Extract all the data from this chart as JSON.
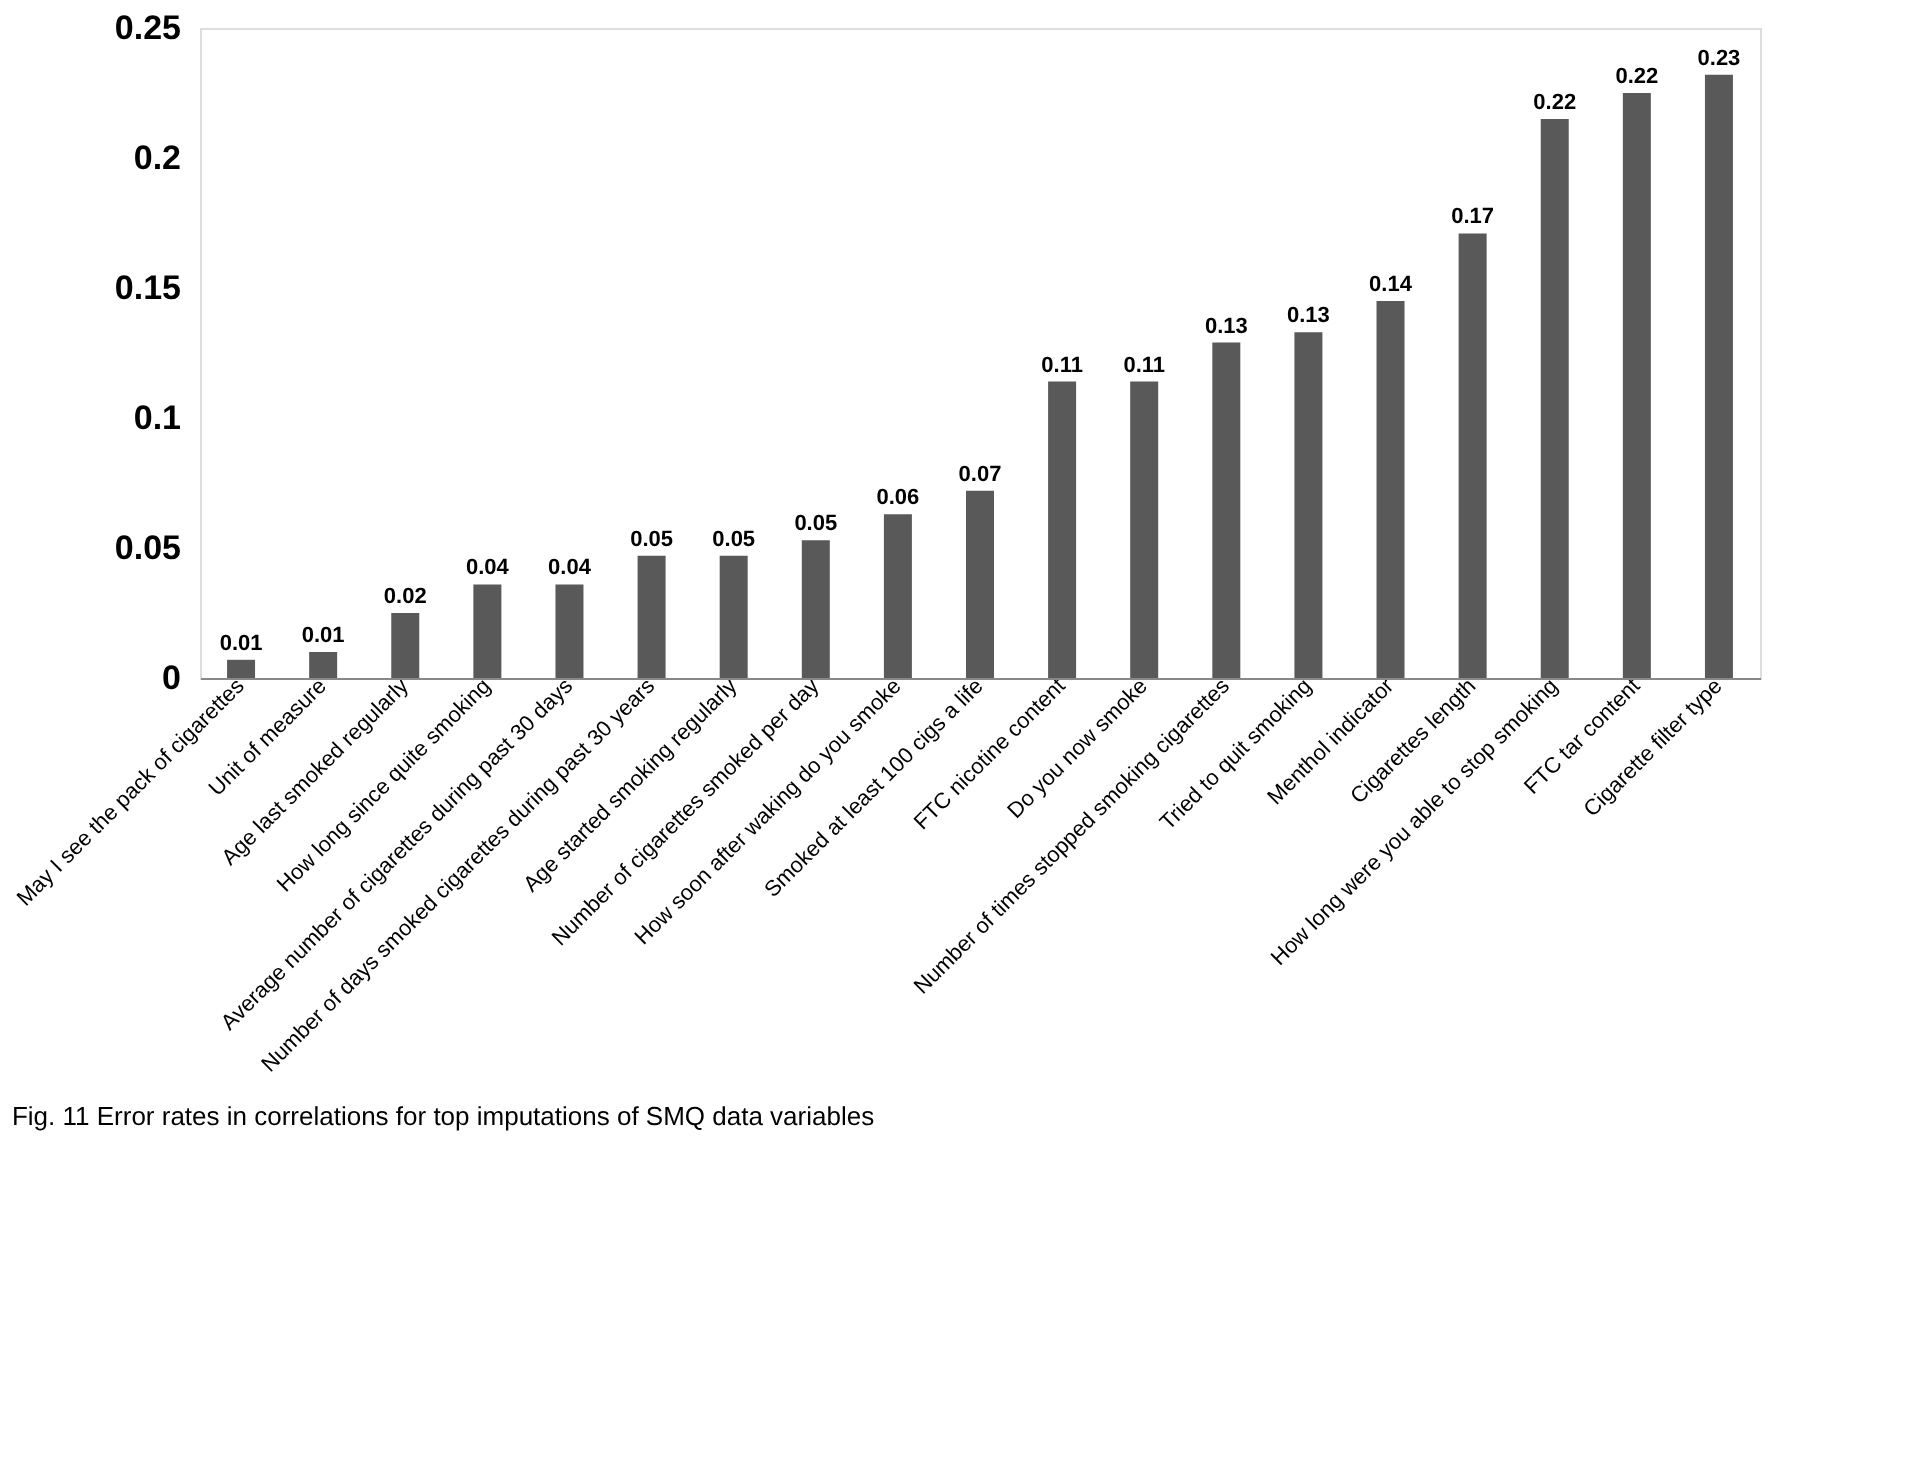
{
  "chart_data": {
    "type": "bar",
    "categories": [
      "May I see the pack of cigarettes",
      "Unit of measure",
      "Age last smoked regularly",
      "How long since quite smoking",
      "Average number of cigarettes during past 30 days",
      "Number of days smoked cigarettes during past 30 years",
      "Age started smoking regularly",
      "Number of cigarettes smoked per day",
      "How soon after waking do you smoke",
      "Smoked at least 100 cigs a life",
      "FTC nicotine content",
      "Do you now smoke",
      "Number of times stopped smoking cigarettes",
      "Tried to quit smoking",
      "Menthol indicator",
      "Cigarettes length",
      "How long were you able to stop smoking",
      "FTC tar content",
      "Cigarette filter type"
    ],
    "values": [
      0.007,
      0.01,
      0.025,
      0.036,
      0.036,
      0.047,
      0.047,
      0.053,
      0.063,
      0.072,
      0.114,
      0.114,
      0.129,
      0.133,
      0.145,
      0.171,
      0.215,
      0.225,
      0.232
    ],
    "value_labels": [
      "0.01",
      "0.01",
      "0.02",
      "0.04",
      "0.04",
      "0.05",
      "0.05",
      "0.05",
      "0.06",
      "0.07",
      "0.11",
      "0.11",
      "0.13",
      "0.13",
      "0.14",
      "0.17",
      "0.22",
      "0.22",
      "0.23"
    ],
    "color": "#595959",
    "ylim": [
      0,
      0.25
    ],
    "yticks": [
      0,
      0.05,
      0.1,
      0.15,
      0.2,
      0.25
    ],
    "grid": false,
    "annotations": [
      "Fig. 11  Error rates in correlations for top imputations of SMQ data variables"
    ]
  }
}
